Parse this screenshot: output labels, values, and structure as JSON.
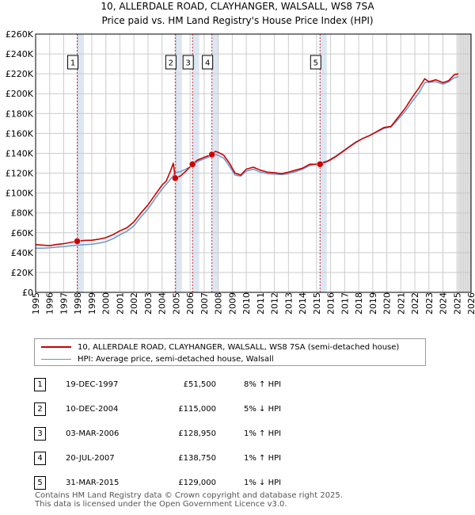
{
  "chart_data": {
    "type": "line",
    "title": "10, ALLERDALE ROAD, CLAYHANGER, WALSALL, WS8 7SA",
    "subtitle": "Price paid vs. HM Land Registry's House Price Index (HPI)",
    "xlabel": "",
    "ylabel": "",
    "xlim": [
      1995,
      2026
    ],
    "ylim": [
      0,
      260000
    ],
    "x_ticks": [
      "1995",
      "1996",
      "1997",
      "1998",
      "1999",
      "2000",
      "2001",
      "2002",
      "2003",
      "2004",
      "2005",
      "2006",
      "2007",
      "2008",
      "2009",
      "2010",
      "2011",
      "2012",
      "2013",
      "2014",
      "2015",
      "2016",
      "2017",
      "2018",
      "2019",
      "2020",
      "2021",
      "2022",
      "2023",
      "2024",
      "2025",
      "2026"
    ],
    "y_ticks": [
      {
        "value": 0,
        "label": "£0"
      },
      {
        "value": 20000,
        "label": "£20K"
      },
      {
        "value": 40000,
        "label": "£40K"
      },
      {
        "value": 60000,
        "label": "£60K"
      },
      {
        "value": 80000,
        "label": "£80K"
      },
      {
        "value": 100000,
        "label": "£100K"
      },
      {
        "value": 120000,
        "label": "£120K"
      },
      {
        "value": 140000,
        "label": "£140K"
      },
      {
        "value": 160000,
        "label": "£160K"
      },
      {
        "value": 180000,
        "label": "£180K"
      },
      {
        "value": 200000,
        "label": "£200K"
      },
      {
        "value": 220000,
        "label": "£220K"
      },
      {
        "value": 240000,
        "label": "£240K"
      },
      {
        "value": 260000,
        "label": "£260K"
      }
    ],
    "grid": true,
    "forecast_from": 2025.1,
    "colors": {
      "property": "#cc0000",
      "hpi": "#6699cc",
      "sale_band": "#dde6f3",
      "forecast_band": "#e4e4e4",
      "sale_line": "#cc0000"
    },
    "series": [
      {
        "name": "10, ALLERDALE ROAD, CLAYHANGER, WALSALL, WS8 7SA (semi-detached house)",
        "color": "#cc0000",
        "points": [
          [
            1995.0,
            48000
          ],
          [
            1995.5,
            47500
          ],
          [
            1996.0,
            47000
          ],
          [
            1996.5,
            48200
          ],
          [
            1997.0,
            49000
          ],
          [
            1997.5,
            50300
          ],
          [
            1997.96,
            51500
          ],
          [
            1998.5,
            52300
          ],
          [
            1999.0,
            52500
          ],
          [
            1999.5,
            53500
          ],
          [
            2000.0,
            55000
          ],
          [
            2000.5,
            58000
          ],
          [
            2001.0,
            62000
          ],
          [
            2001.5,
            65000
          ],
          [
            2002.0,
            71000
          ],
          [
            2002.5,
            80000
          ],
          [
            2003.0,
            88000
          ],
          [
            2003.5,
            98000
          ],
          [
            2004.0,
            108000
          ],
          [
            2004.3,
            112000
          ],
          [
            2004.6,
            122000
          ],
          [
            2004.8,
            130000
          ],
          [
            2004.94,
            115000
          ],
          [
            2005.3,
            117000
          ],
          [
            2005.7,
            122000
          ],
          [
            2006.17,
            128950
          ],
          [
            2006.5,
            133000
          ],
          [
            2007.0,
            136000
          ],
          [
            2007.55,
            138750
          ],
          [
            2007.8,
            142000
          ],
          [
            2008.0,
            141000
          ],
          [
            2008.4,
            138000
          ],
          [
            2008.8,
            130000
          ],
          [
            2009.2,
            120000
          ],
          [
            2009.6,
            118000
          ],
          [
            2010.0,
            124000
          ],
          [
            2010.5,
            126000
          ],
          [
            2011.0,
            123000
          ],
          [
            2011.5,
            121000
          ],
          [
            2012.0,
            120500
          ],
          [
            2012.5,
            119500
          ],
          [
            2013.0,
            121000
          ],
          [
            2013.5,
            123000
          ],
          [
            2014.0,
            125000
          ],
          [
            2014.5,
            129000
          ],
          [
            2015.25,
            129000
          ],
          [
            2015.8,
            132000
          ],
          [
            2016.3,
            136000
          ],
          [
            2016.8,
            141000
          ],
          [
            2017.3,
            146000
          ],
          [
            2017.8,
            151000
          ],
          [
            2018.3,
            155000
          ],
          [
            2018.8,
            158000
          ],
          [
            2019.3,
            162000
          ],
          [
            2019.8,
            166000
          ],
          [
            2020.3,
            167000
          ],
          [
            2020.8,
            176000
          ],
          [
            2021.3,
            185000
          ],
          [
            2021.8,
            196000
          ],
          [
            2022.3,
            206000
          ],
          [
            2022.7,
            215000
          ],
          [
            2023.0,
            212000
          ],
          [
            2023.5,
            214000
          ],
          [
            2024.0,
            211000
          ],
          [
            2024.4,
            213000
          ],
          [
            2024.8,
            219000
          ],
          [
            2025.1,
            220000
          ]
        ]
      },
      {
        "name": "HPI: Average price, semi-detached house, Walsall",
        "color": "#6699cc",
        "points": [
          [
            1995.0,
            44500
          ],
          [
            1995.5,
            44500
          ],
          [
            1996.0,
            44800
          ],
          [
            1996.5,
            45500
          ],
          [
            1997.0,
            46000
          ],
          [
            1997.5,
            46800
          ],
          [
            1997.96,
            47500
          ],
          [
            1998.5,
            48000
          ],
          [
            1999.0,
            48500
          ],
          [
            1999.5,
            49500
          ],
          [
            2000.0,
            51000
          ],
          [
            2000.5,
            54000
          ],
          [
            2001.0,
            58000
          ],
          [
            2001.5,
            61500
          ],
          [
            2002.0,
            67000
          ],
          [
            2002.5,
            76000
          ],
          [
            2003.0,
            84000
          ],
          [
            2003.5,
            94000
          ],
          [
            2004.0,
            104000
          ],
          [
            2004.5,
            112000
          ],
          [
            2004.94,
            120500
          ],
          [
            2005.3,
            121500
          ],
          [
            2005.7,
            124000
          ],
          [
            2006.17,
            127500
          ],
          [
            2006.5,
            131500
          ],
          [
            2007.0,
            134500
          ],
          [
            2007.55,
            137500
          ],
          [
            2007.8,
            139000
          ],
          [
            2008.0,
            138000
          ],
          [
            2008.4,
            135000
          ],
          [
            2008.8,
            127000
          ],
          [
            2009.2,
            118000
          ],
          [
            2009.6,
            117000
          ],
          [
            2010.0,
            122000
          ],
          [
            2010.5,
            124000
          ],
          [
            2011.0,
            121000
          ],
          [
            2011.5,
            119500
          ],
          [
            2012.0,
            119000
          ],
          [
            2012.5,
            118500
          ],
          [
            2013.0,
            119500
          ],
          [
            2013.5,
            121500
          ],
          [
            2014.0,
            124000
          ],
          [
            2014.5,
            127500
          ],
          [
            2015.25,
            130300
          ],
          [
            2015.8,
            132500
          ],
          [
            2016.3,
            136500
          ],
          [
            2016.8,
            141500
          ],
          [
            2017.3,
            146500
          ],
          [
            2017.8,
            151500
          ],
          [
            2018.3,
            155000
          ],
          [
            2018.8,
            158000
          ],
          [
            2019.3,
            161500
          ],
          [
            2019.8,
            165000
          ],
          [
            2020.3,
            166500
          ],
          [
            2020.8,
            174000
          ],
          [
            2021.3,
            182000
          ],
          [
            2021.8,
            192000
          ],
          [
            2022.3,
            201000
          ],
          [
            2022.7,
            211000
          ],
          [
            2023.0,
            211500
          ],
          [
            2023.5,
            212000
          ],
          [
            2024.0,
            209500
          ],
          [
            2024.4,
            212000
          ],
          [
            2024.8,
            216000
          ],
          [
            2025.1,
            217000
          ]
        ]
      }
    ],
    "sales": [
      {
        "label": "1",
        "x": 1997.96,
        "price": 51500
      },
      {
        "label": "2",
        "x": 2004.94,
        "price": 115000
      },
      {
        "label": "3",
        "x": 2006.17,
        "price": 128950
      },
      {
        "label": "4",
        "x": 2007.55,
        "price": 138750
      },
      {
        "label": "5",
        "x": 2015.25,
        "price": 129000
      }
    ]
  },
  "legend": {
    "property_label": "10, ALLERDALE ROAD, CLAYHANGER, WALSALL, WS8 7SA (semi-detached house)",
    "hpi_label": "HPI: Average price, semi-detached house, Walsall"
  },
  "table": {
    "rows": [
      {
        "num": "1",
        "date": "19-DEC-1997",
        "price": "£51,500",
        "hpi": "8% ↑ HPI"
      },
      {
        "num": "2",
        "date": "10-DEC-2004",
        "price": "£115,000",
        "hpi": "5% ↓ HPI"
      },
      {
        "num": "3",
        "date": "03-MAR-2006",
        "price": "£128,950",
        "hpi": "1% ↑ HPI"
      },
      {
        "num": "4",
        "date": "20-JUL-2007",
        "price": "£138,750",
        "hpi": "1% ↑ HPI"
      },
      {
        "num": "5",
        "date": "31-MAR-2015",
        "price": "£129,000",
        "hpi": "1% ↓ HPI"
      }
    ]
  },
  "footer": {
    "line1": "Contains HM Land Registry data © Crown copyright and database right 2025.",
    "line2": "This data is licensed under the Open Government Licence v3.0."
  }
}
